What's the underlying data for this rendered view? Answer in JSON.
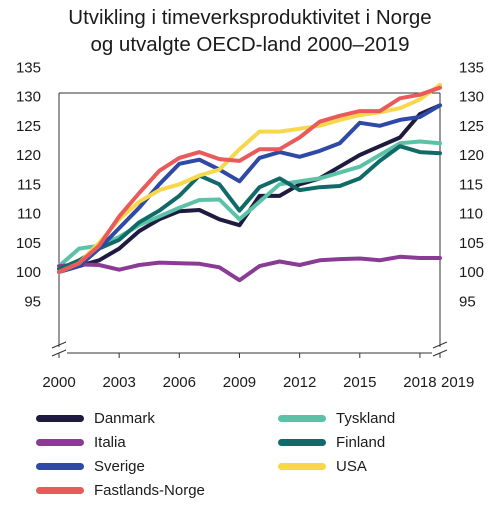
{
  "chart_data": {
    "type": "line",
    "title_lines": [
      "Utvikling i timeverksproduktivitet i Norge",
      "og utvalgte OECD-land 2000–2019"
    ],
    "x": [
      2000,
      2001,
      2002,
      2003,
      2004,
      2005,
      2006,
      2007,
      2008,
      2009,
      2010,
      2011,
      2012,
      2013,
      2014,
      2015,
      2016,
      2017,
      2018,
      2019
    ],
    "x_ticks": [
      "2000",
      "2003",
      "2006",
      "2009",
      "2012",
      "2015",
      "2018",
      "2019"
    ],
    "y_ticks": [
      "95",
      "100",
      "105",
      "110",
      "115",
      "120",
      "125",
      "130",
      "135"
    ],
    "ylim": [
      95,
      135
    ],
    "axis_break": true,
    "grid": false,
    "series": [
      {
        "name": "Danmark",
        "color": "#1f1a3f",
        "values": [
          100,
          101,
          102,
          104,
          107,
          109,
          110.4,
          110.6,
          109,
          108,
          113,
          113,
          115,
          116,
          118,
          120,
          121.5,
          123,
          127,
          128.5
        ]
      },
      {
        "name": "Tyskland",
        "color": "#5cc2a7",
        "values": [
          101,
          104,
          104.5,
          106,
          108,
          109.5,
          111,
          112.3,
          112.4,
          109,
          112,
          115,
          115.5,
          116,
          117,
          118,
          120,
          122,
          122.3,
          122
        ]
      },
      {
        "name": "Italia",
        "color": "#8a3c95",
        "values": [
          101,
          101.3,
          101.2,
          100.4,
          101.2,
          101.6,
          101.5,
          101.4,
          100.8,
          98.6,
          101,
          101.8,
          101.2,
          102,
          102.2,
          102.3,
          102,
          102.6,
          102.4,
          102.4
        ]
      },
      {
        "name": "Finland",
        "color": "#106a67",
        "values": [
          100.5,
          102,
          104,
          105.5,
          108.5,
          110.5,
          113,
          116.5,
          115,
          110.5,
          114.5,
          116,
          114,
          114.5,
          114.7,
          116,
          119,
          121.5,
          120.5,
          120.3
        ]
      },
      {
        "name": "Sverige",
        "color": "#2f4aa6",
        "values": [
          100,
          101,
          104,
          107.5,
          111,
          115,
          118.5,
          119.2,
          117.5,
          115.5,
          119.5,
          120.5,
          119.7,
          120.7,
          122,
          125.5,
          125,
          126,
          126.5,
          128.5
        ]
      },
      {
        "name": "USA",
        "color": "#f6d84a",
        "values": [
          100,
          101.5,
          105,
          109,
          112,
          114,
          115,
          116.5,
          117.5,
          121,
          124,
          124,
          124.5,
          125,
          126,
          126.8,
          127.3,
          128,
          129.5,
          132
        ]
      },
      {
        "name": "Fastlands-Norge",
        "color": "#ea5a5b",
        "values": [
          100,
          101.5,
          104.5,
          109.5,
          113.5,
          117.3,
          119.5,
          120.5,
          119.3,
          119,
          121,
          121,
          123,
          125.7,
          126.7,
          127.5,
          127.5,
          129.7,
          130.3,
          131.5
        ]
      }
    ]
  }
}
